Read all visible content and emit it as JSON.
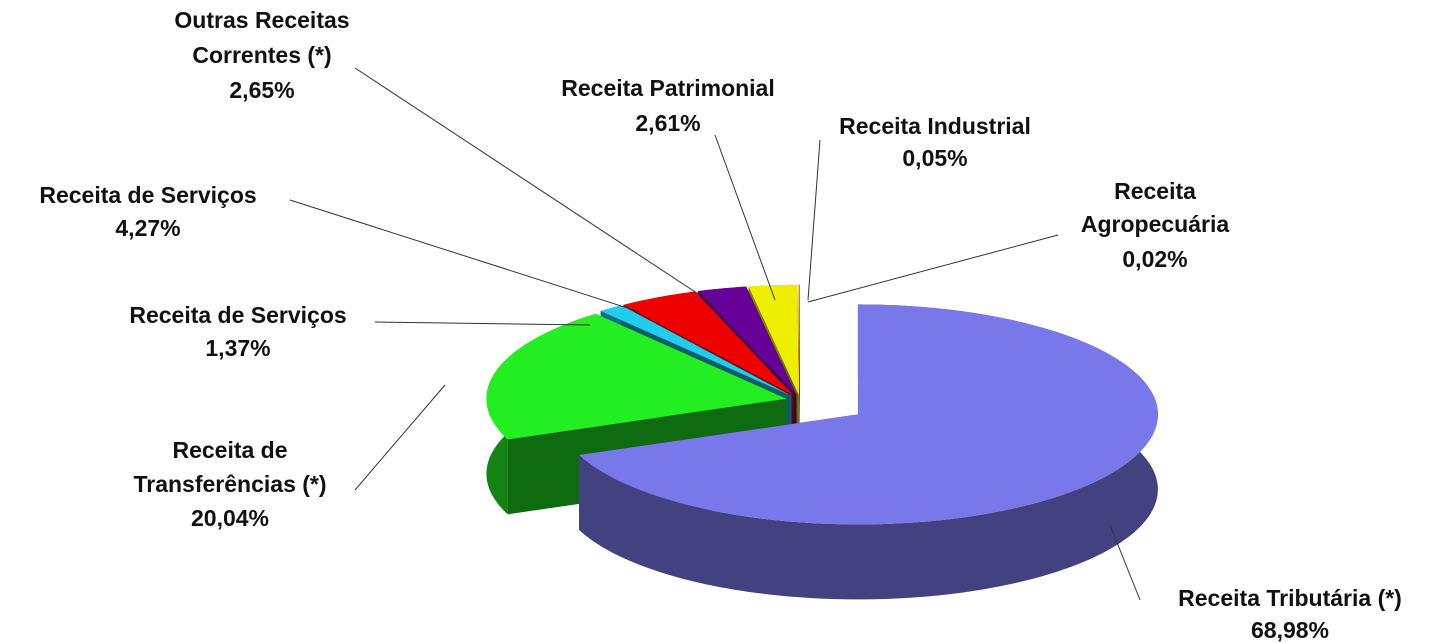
{
  "chart_data": {
    "type": "pie",
    "categories": [
      "Receita Tributária (*)",
      "Receita de Transferências (*)",
      "Receita de Serviços",
      "Receita de Serviços",
      "Outras Receitas Correntes (*)",
      "Receita Patrimonial",
      "Receita Industrial",
      "Receita Agropecuária"
    ],
    "values": [
      68.98,
      20.04,
      1.37,
      4.27,
      2.65,
      2.61,
      0.05,
      0.02
    ],
    "value_labels": [
      "68,98%",
      "20,04%",
      "1,37%",
      "4,27%",
      "2,65%",
      "2,61%",
      "0,05%",
      "0,02%"
    ],
    "colors": [
      "#7878ea",
      "#22ee22",
      "#22ccee",
      "#ee0000",
      "#660099",
      "#eeee00",
      "#ff8800",
      "#999999"
    ]
  }
}
